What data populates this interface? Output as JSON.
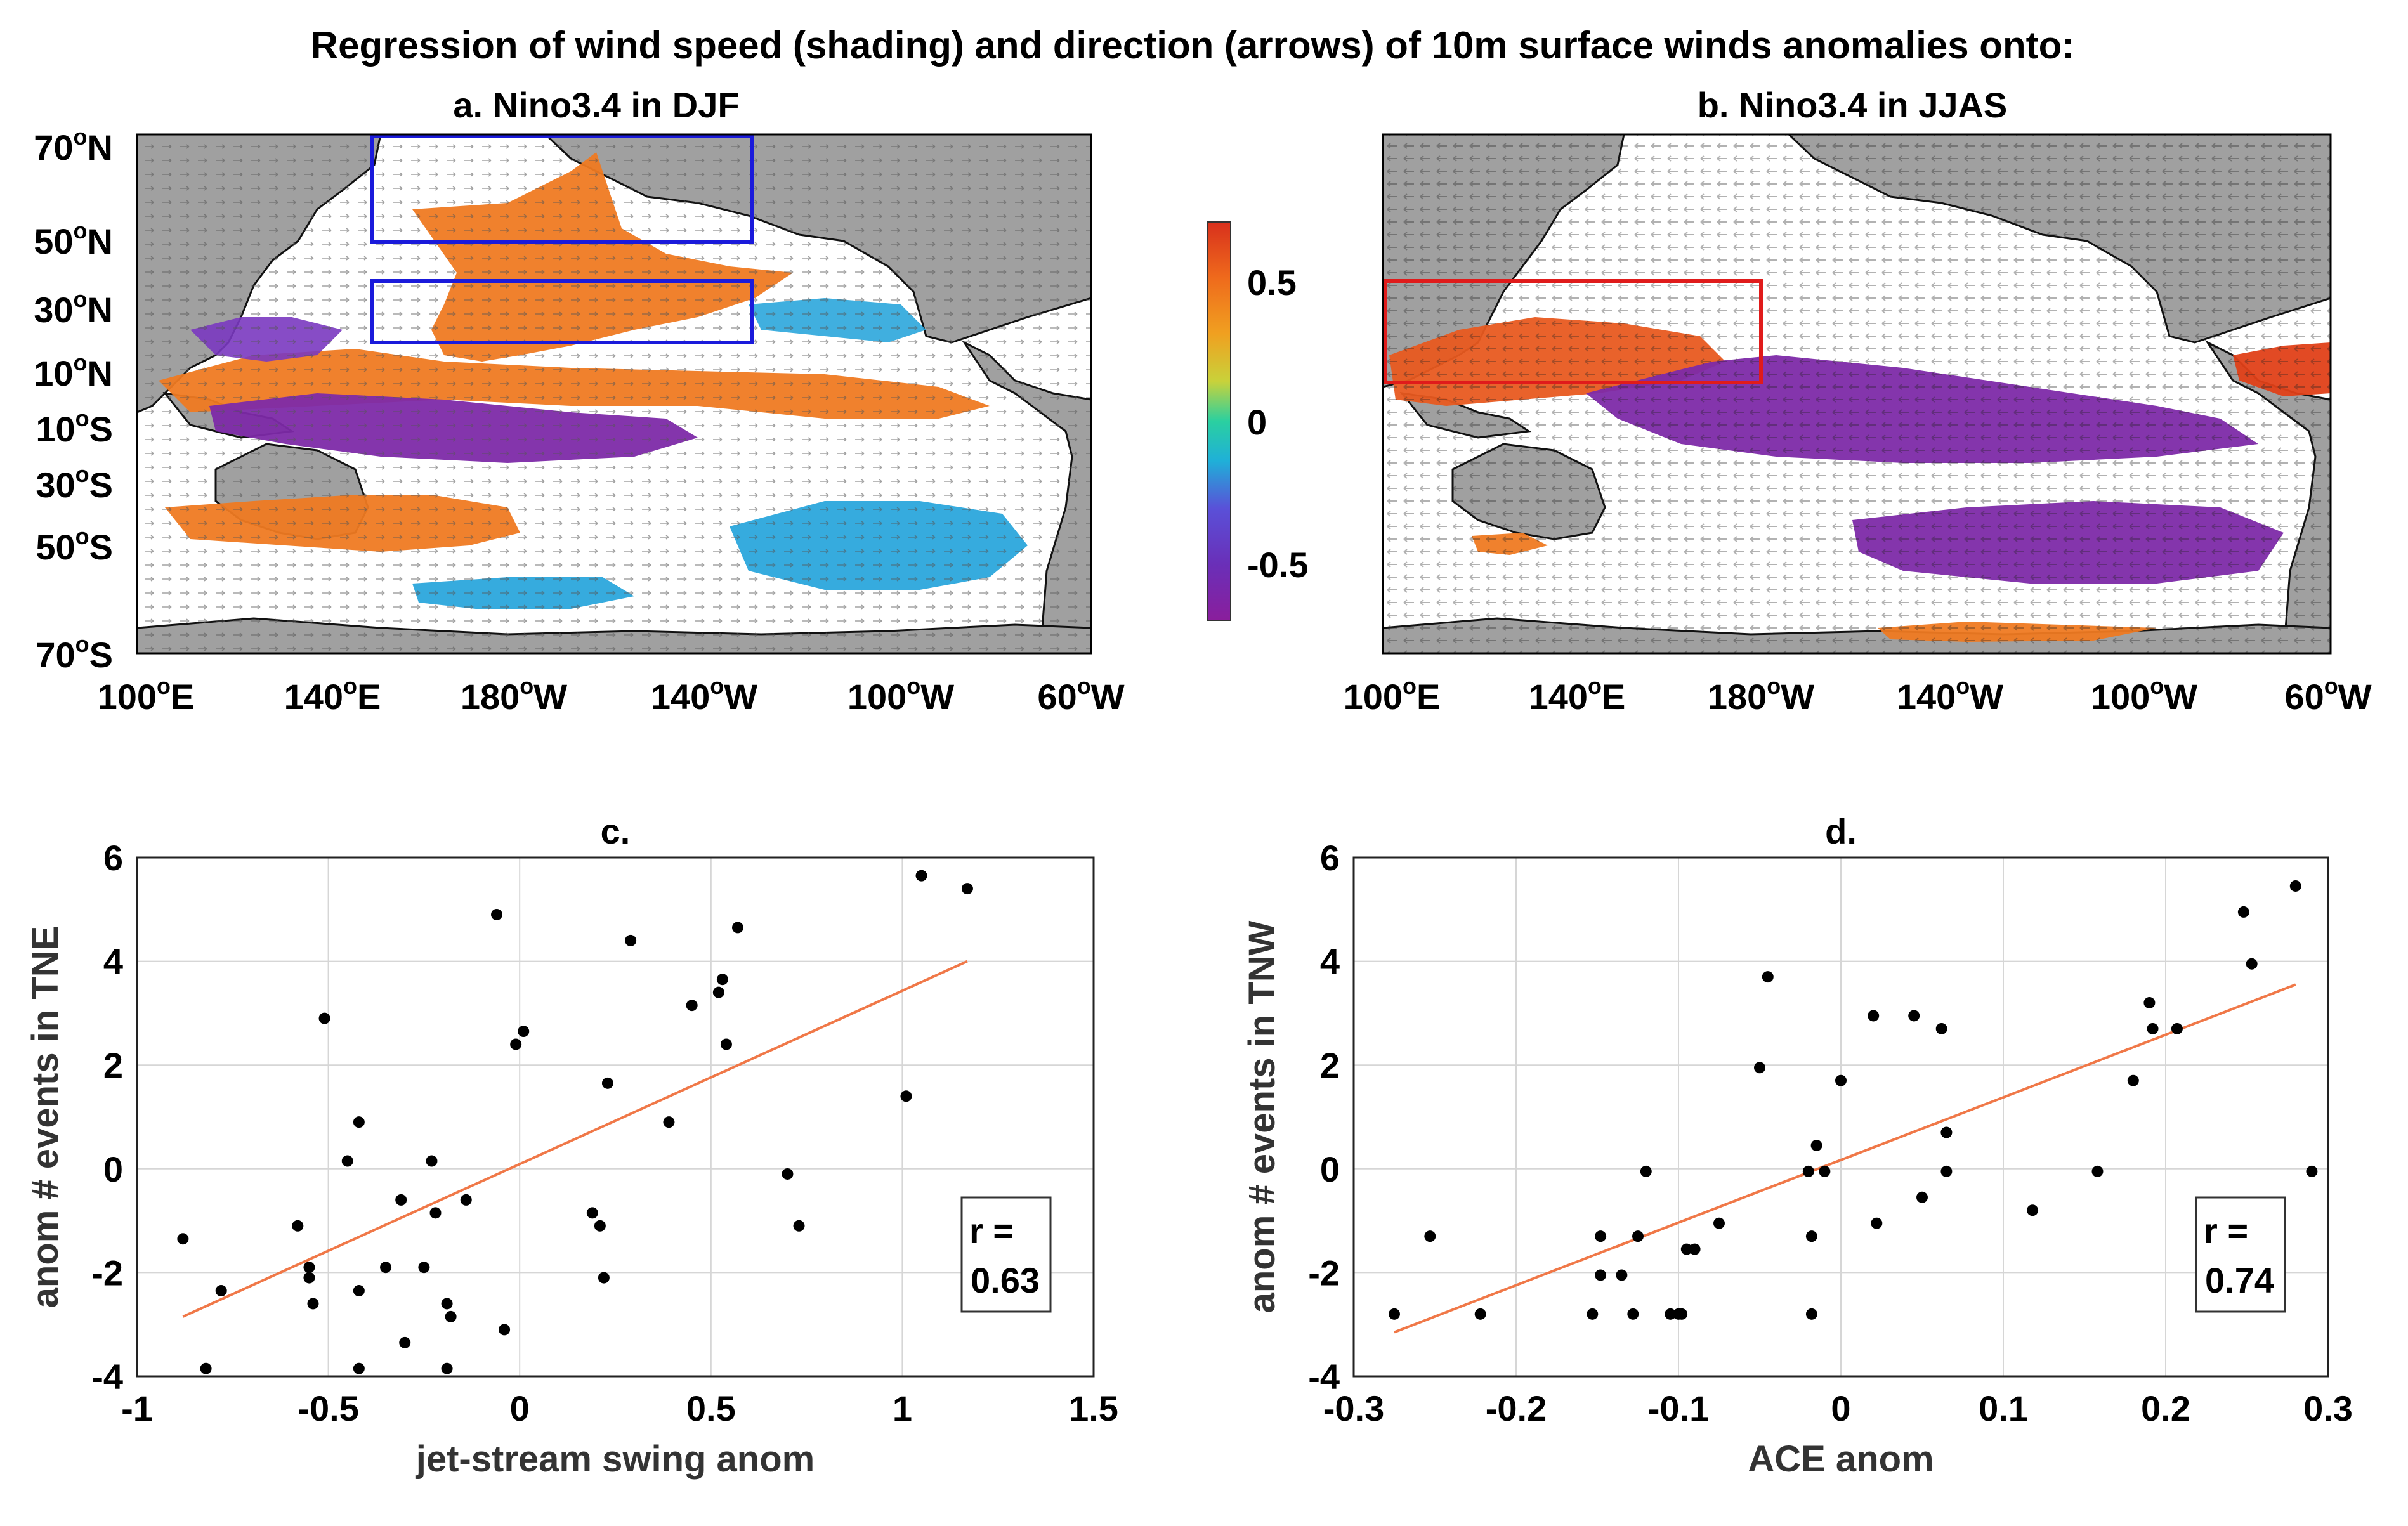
{
  "figure": {
    "title": "Regression of wind speed (shading) and direction (arrows) of 10m surface winds anomalies onto:"
  },
  "maps": {
    "a": {
      "title": "a. Nino3.4 in DJF",
      "box_color": "#1a1adb",
      "lat_labels": [
        "70",
        "50",
        "30",
        "10",
        "10",
        "30",
        "50",
        "70"
      ],
      "lat_hemis": [
        "N",
        "N",
        "N",
        "N",
        "S",
        "S",
        "S",
        "S"
      ],
      "lon_labels": [
        "100",
        "140",
        "180",
        "140",
        "100",
        "60"
      ],
      "lon_hemis": [
        "E",
        "E",
        "W",
        "W",
        "W",
        "W"
      ]
    },
    "b": {
      "title": "b. Nino3.4 in JJAS",
      "box_color": "#e01b1b",
      "lon_labels": [
        "100",
        "140",
        "180",
        "140",
        "100",
        "60"
      ],
      "lon_hemis": [
        "E",
        "E",
        "W",
        "W",
        "W",
        "W"
      ]
    },
    "degree_symbol": "o"
  },
  "colorbar": {
    "ticks": [
      "0.5",
      "0",
      "-0.5"
    ],
    "colors": [
      "#8a1e9c",
      "#5a50d8",
      "#1fb0d8",
      "#2ad0a0",
      "#c9d23a",
      "#f0a020",
      "#ef6a1c",
      "#d8301c"
    ]
  },
  "chart_data": [
    {
      "type": "scatter",
      "title": "c.",
      "xlabel": "jet-stream swing anom",
      "ylabel": "anom # events in TNE",
      "xlim": [
        -1,
        1.5
      ],
      "ylim": [
        -4,
        6
      ],
      "xticks": [
        -1,
        -0.5,
        0,
        0.5,
        1,
        1.5
      ],
      "xtick_labels": [
        "-1",
        "-0.5",
        "0",
        "0.5",
        "1",
        "1.5"
      ],
      "yticks": [
        -4,
        -2,
        0,
        2,
        4,
        6
      ],
      "ytick_labels": [
        "-4",
        "-2",
        "0",
        "2",
        "4",
        "6"
      ],
      "points": [
        [
          -0.88,
          -1.35
        ],
        [
          -0.82,
          -3.85
        ],
        [
          -0.78,
          -2.35
        ],
        [
          -0.58,
          -1.1
        ],
        [
          -0.55,
          -1.9
        ],
        [
          -0.55,
          -2.1
        ],
        [
          -0.54,
          -2.6
        ],
        [
          -0.51,
          2.9
        ],
        [
          -0.45,
          0.15
        ],
        [
          -0.42,
          0.9
        ],
        [
          -0.42,
          -2.35
        ],
        [
          -0.42,
          -3.85
        ],
        [
          -0.35,
          -1.9
        ],
        [
          -0.31,
          -0.6
        ],
        [
          -0.3,
          -3.35
        ],
        [
          -0.25,
          -1.9
        ],
        [
          -0.23,
          0.15
        ],
        [
          -0.22,
          -0.85
        ],
        [
          -0.19,
          -2.6
        ],
        [
          -0.18,
          -2.85
        ],
        [
          -0.19,
          -3.85
        ],
        [
          -0.14,
          -0.6
        ],
        [
          -0.06,
          4.9
        ],
        [
          -0.04,
          -3.1
        ],
        [
          -0.01,
          2.4
        ],
        [
          0.01,
          2.65
        ],
        [
          0.19,
          -0.85
        ],
        [
          0.21,
          -1.1
        ],
        [
          0.22,
          -2.1
        ],
        [
          0.23,
          1.65
        ],
        [
          0.29,
          4.4
        ],
        [
          0.39,
          0.9
        ],
        [
          0.45,
          3.15
        ],
        [
          0.52,
          3.4
        ],
        [
          0.53,
          3.65
        ],
        [
          0.54,
          2.4
        ],
        [
          0.57,
          4.65
        ],
        [
          0.7,
          -0.1
        ],
        [
          0.73,
          -1.1
        ],
        [
          1.01,
          1.4
        ],
        [
          1.05,
          5.65
        ],
        [
          1.17,
          5.4
        ]
      ],
      "fit_line": [
        [
          -0.88,
          -2.85
        ],
        [
          1.17,
          4.0
        ]
      ],
      "fit_color": "#f07848",
      "r_label": "r =",
      "r_value": "0.63"
    },
    {
      "type": "scatter",
      "title": "d.",
      "xlabel": "ACE anom",
      "ylabel": "anom # events in TNW",
      "xlim": [
        -0.3,
        0.3
      ],
      "ylim": [
        -4,
        6
      ],
      "xticks": [
        -0.3,
        -0.2,
        -0.1,
        0,
        0.1,
        0.2,
        0.3
      ],
      "xtick_labels": [
        "-0.3",
        "-0.2",
        "-0.1",
        "0",
        "0.1",
        "0.2",
        "0.3"
      ],
      "yticks": [
        -4,
        -2,
        0,
        2,
        4,
        6
      ],
      "ytick_labels": [
        "-4",
        "-2",
        "0",
        "2",
        "4",
        "6"
      ],
      "points": [
        [
          -0.275,
          -2.8
        ],
        [
          -0.253,
          -1.3
        ],
        [
          -0.222,
          -2.8
        ],
        [
          -0.153,
          -2.8
        ],
        [
          -0.148,
          -1.3
        ],
        [
          -0.148,
          -2.05
        ],
        [
          -0.135,
          -2.05
        ],
        [
          -0.128,
          -2.8
        ],
        [
          -0.125,
          -1.3
        ],
        [
          -0.12,
          -0.05
        ],
        [
          -0.105,
          -2.8
        ],
        [
          -0.1,
          -2.8
        ],
        [
          -0.098,
          -2.8
        ],
        [
          -0.095,
          -1.55
        ],
        [
          -0.09,
          -1.55
        ],
        [
          -0.075,
          -1.05
        ],
        [
          -0.05,
          1.95
        ],
        [
          -0.045,
          3.7
        ],
        [
          -0.02,
          -0.05
        ],
        [
          -0.018,
          -2.8
        ],
        [
          -0.018,
          -1.3
        ],
        [
          -0.015,
          0.45
        ],
        [
          -0.01,
          -0.05
        ],
        [
          0.0,
          1.7
        ],
        [
          0.02,
          2.95
        ],
        [
          0.022,
          -1.05
        ],
        [
          0.045,
          2.95
        ],
        [
          0.05,
          -0.55
        ],
        [
          0.062,
          2.7
        ],
        [
          0.065,
          -0.05
        ],
        [
          0.065,
          0.7
        ],
        [
          0.118,
          -0.8
        ],
        [
          0.158,
          -0.05
        ],
        [
          0.18,
          1.7
        ],
        [
          0.19,
          3.2
        ],
        [
          0.192,
          2.7
        ],
        [
          0.207,
          2.7
        ],
        [
          0.248,
          4.95
        ],
        [
          0.253,
          3.95
        ],
        [
          0.28,
          5.45
        ],
        [
          0.29,
          -0.05
        ]
      ],
      "fit_line": [
        [
          -0.275,
          -3.15
        ],
        [
          0.28,
          3.55
        ]
      ],
      "fit_color": "#f07848",
      "r_label": "r =",
      "r_value": "0.74"
    }
  ]
}
